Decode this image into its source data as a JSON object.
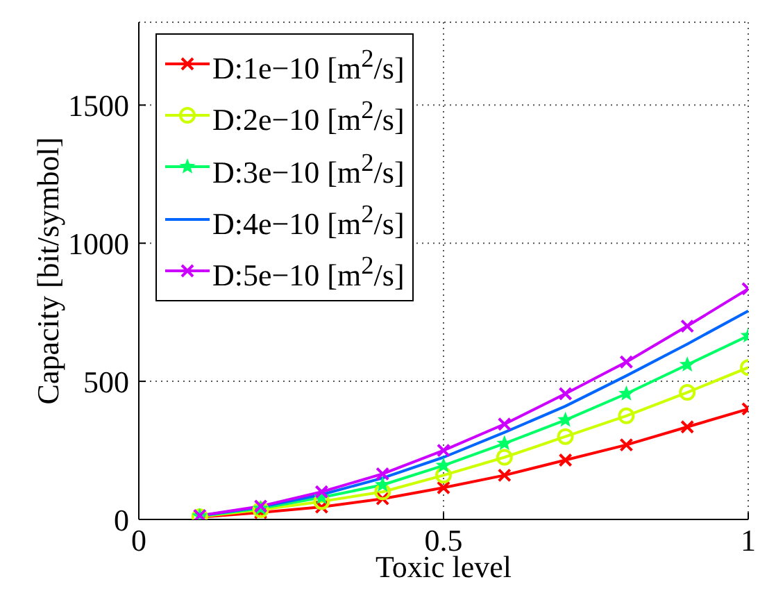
{
  "chart_data": {
    "type": "line",
    "xlabel": "Toxic level",
    "ylabel": "Capacity [bit/symbol]",
    "x": [
      0.1,
      0.2,
      0.3,
      0.4,
      0.5,
      0.6,
      0.7,
      0.8,
      0.9,
      1.0
    ],
    "series": [
      {
        "name": "D:1e−10 [m$^{2}$/s]",
        "color": "#ff0000",
        "marker": "cross",
        "values": [
          8,
          25,
          45,
          75,
          115,
          160,
          215,
          270,
          335,
          400
        ]
      },
      {
        "name": "D:2e−10 [m$^{2}$/s]",
        "color": "#ccff00",
        "marker": "circle",
        "values": [
          10,
          35,
          65,
          100,
          160,
          225,
          300,
          375,
          460,
          550
        ]
      },
      {
        "name": "D:3e−10 [m$^{2}$/s]",
        "color": "#00ff66",
        "marker": "star",
        "values": [
          12,
          40,
          80,
          125,
          195,
          275,
          360,
          455,
          560,
          665
        ]
      },
      {
        "name": "D:4e−10 [m$^{2}$/s]",
        "color": "#0066ff",
        "marker": "none",
        "values": [
          13,
          45,
          90,
          150,
          225,
          315,
          410,
          520,
          635,
          755
        ]
      },
      {
        "name": "D:5e−10 [m$^{2}$/s]",
        "color": "#cc00ff",
        "marker": "cross",
        "values": [
          14,
          48,
          100,
          165,
          250,
          345,
          455,
          570,
          700,
          835
        ]
      }
    ],
    "xlim": [
      0,
      1
    ],
    "xticks": [
      0,
      0.5,
      1
    ],
    "ylim": [
      0,
      1800
    ],
    "yticks": [
      0,
      500,
      1000,
      1500
    ],
    "grid": true,
    "legend": "top left",
    "line_style": "solid"
  }
}
